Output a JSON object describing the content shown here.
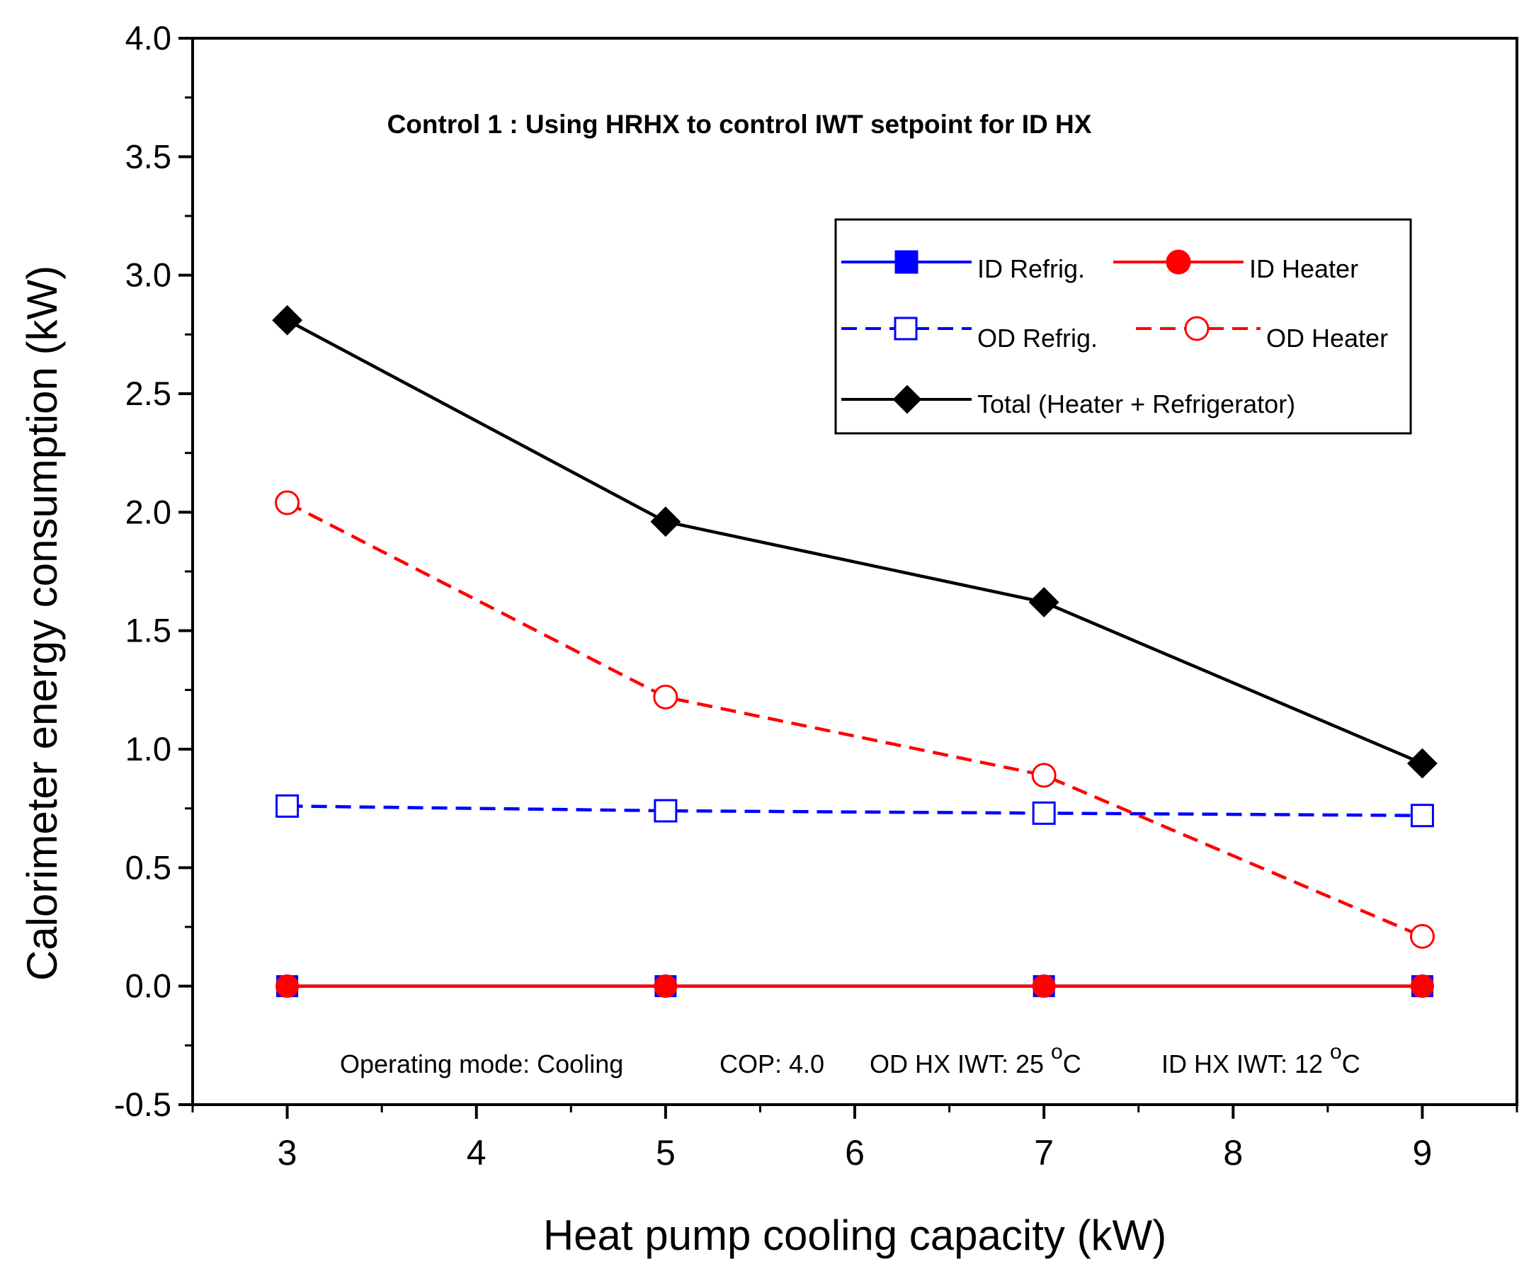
{
  "chart_data": {
    "type": "line",
    "title": "Control 1 : Using HRHX to control IWT setpoint for ID HX",
    "xlabel": "Heat pump cooling capacity (kW)",
    "ylabel": "Calorimeter energy consumption (kW)",
    "xlim": [
      2.5,
      9.5
    ],
    "ylim": [
      -0.5,
      4.0
    ],
    "x_ticks": [
      3,
      4,
      5,
      6,
      7,
      8,
      9
    ],
    "x_tick_labels": [
      "3",
      "4",
      "5",
      "6",
      "7",
      "8",
      "9"
    ],
    "y_ticks": [
      -0.5,
      0.0,
      0.5,
      1.0,
      1.5,
      2.0,
      2.5,
      3.0,
      3.5,
      4.0
    ],
    "y_tick_labels": [
      "-0.5",
      "0.0",
      "0.5",
      "1.0",
      "1.5",
      "2.0",
      "2.5",
      "3.0",
      "3.5",
      "4.0"
    ],
    "grid": false,
    "legend_position": "top-right",
    "x": [
      3,
      5,
      7,
      9
    ],
    "series": [
      {
        "name": "ID Refrig.",
        "values": [
          0.0,
          0.0,
          0.0,
          0.0
        ],
        "color": "#0000ff",
        "dash": "solid",
        "marker": "square-filled"
      },
      {
        "name": "ID Heater",
        "values": [
          0.0,
          0.0,
          0.0,
          0.0
        ],
        "color": "#ff0000",
        "dash": "solid",
        "marker": "circle-filled"
      },
      {
        "name": "OD Refrig.",
        "values": [
          0.76,
          0.74,
          0.73,
          0.72
        ],
        "color": "#0000ff",
        "dash": "dashed",
        "marker": "square-open"
      },
      {
        "name": "OD Heater",
        "values": [
          2.04,
          1.22,
          0.89,
          0.21
        ],
        "color": "#ff0000",
        "dash": "dashed",
        "marker": "circle-open"
      },
      {
        "name": "Total (Heater + Refrigerator)",
        "values": [
          2.81,
          1.96,
          1.62,
          0.94
        ],
        "color": "#000000",
        "dash": "solid",
        "marker": "diamond-filled"
      }
    ],
    "annotation": {
      "mode": "Operating mode: Cooling",
      "cop": "COP: 4.0",
      "od_prefix": "OD HX IWT: 25 ",
      "id_prefix": "ID HX IWT: 12 ",
      "degree_sup": "o",
      "unit": "C"
    }
  }
}
